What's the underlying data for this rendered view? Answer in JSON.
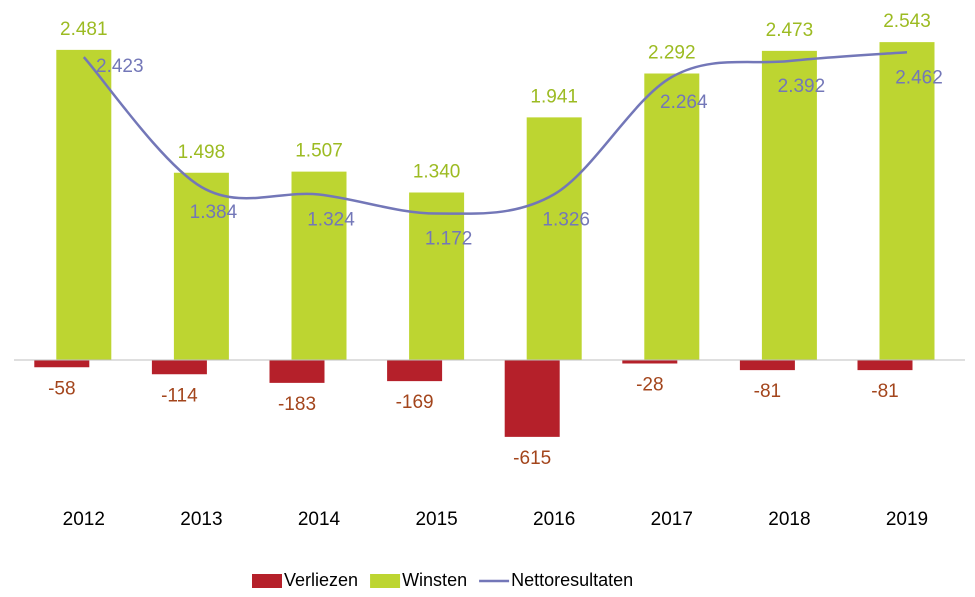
{
  "chart_data": {
    "type": "bar",
    "categories": [
      "2012",
      "2013",
      "2014",
      "2015",
      "2016",
      "2017",
      "2018",
      "2019"
    ],
    "series": [
      {
        "name": "Verliezen",
        "color": "#b5202a",
        "label_color": "#a3451c",
        "values": [
          -58,
          -114,
          -183,
          -169,
          -615,
          -28,
          -81,
          -81
        ]
      },
      {
        "name": "Winsten",
        "color": "#bdd531",
        "label_color": "#9cbb22",
        "values": [
          2481,
          1498,
          1507,
          1340,
          1941,
          2292,
          2473,
          2543
        ],
        "value_labels": [
          "2.481",
          "1.498",
          "1.507",
          "1.340",
          "1.941",
          "2.292",
          "2.473",
          "2.543"
        ]
      },
      {
        "name": "Nettoresultaten",
        "type": "line",
        "color": "#7377b8",
        "label_color": "#7377b8",
        "values": [
          2423,
          1384,
          1324,
          1172,
          1326,
          2264,
          2392,
          2462
        ],
        "value_labels": [
          "2.423",
          "1.384",
          "1.324",
          "1.172",
          "1.326",
          "2.264",
          "2.392",
          "2.462"
        ]
      }
    ],
    "ylim": [
      -700,
      2600
    ]
  }
}
